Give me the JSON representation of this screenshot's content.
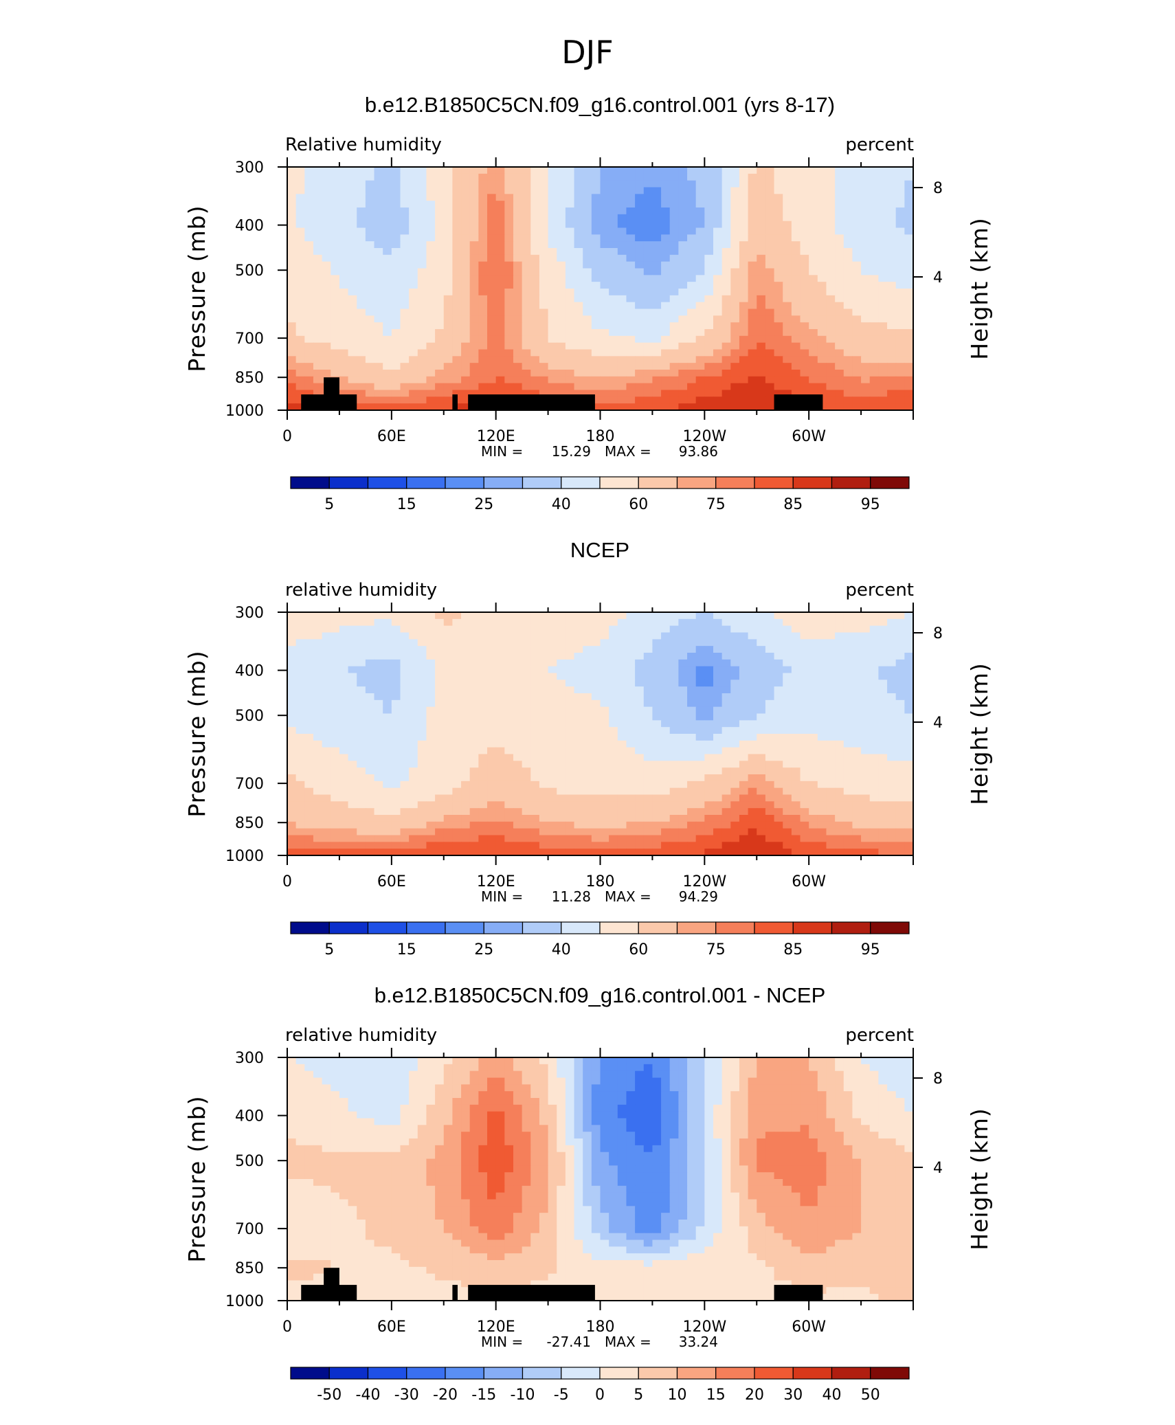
{
  "figure": {
    "title": "DJF"
  },
  "chart_data": [
    {
      "type": "heatmap",
      "title": "b.e12.B1850C5CN.f09_g16.control.001 (yrs 8-17)",
      "left_label": "Relative humidity",
      "right_label": "percent",
      "ylabel": "Pressure (mb)",
      "ylabel_right": "Height (km)",
      "x_ticks": [
        "0",
        "60E",
        "120E",
        "180",
        "120W",
        "60W"
      ],
      "y_ticks": [
        "300",
        "400",
        "500",
        "700",
        "850",
        "1000"
      ],
      "y_ticks_right": [
        "8",
        "4"
      ],
      "min_text": "15.29",
      "max_text": "93.86",
      "colorbar_labels": [
        "5",
        "15",
        "25",
        "40",
        "60",
        "75",
        "85",
        "95"
      ],
      "colorbar_colors": [
        "#000c8b",
        "#0b2fcb",
        "#1e50e6",
        "#3a70f0",
        "#5a8ff4",
        "#86adf6",
        "#b0ccf8",
        "#d8e8fa",
        "#fde5d2",
        "#fbc9ab",
        "#f9a581",
        "#f57f5a",
        "#f05a33",
        "#d8381a",
        "#b01e10",
        "#7f0a07"
      ],
      "masked_topography": true,
      "series": [
        {
          "lon": [
            0,
            60,
            90,
            120,
            150,
            180,
            210,
            240,
            270,
            300,
            330,
            360
          ],
          "p1000": [
            88,
            84,
            86,
            88,
            85,
            82,
            84,
            88,
            90,
            86,
            84,
            86
          ],
          "p850": [
            78,
            62,
            72,
            80,
            74,
            70,
            74,
            80,
            86,
            80,
            74,
            76
          ],
          "p700": [
            62,
            50,
            62,
            78,
            60,
            52,
            48,
            62,
            80,
            72,
            64,
            62
          ],
          "p500": [
            56,
            42,
            56,
            82,
            56,
            36,
            28,
            40,
            74,
            60,
            50,
            44
          ],
          "p400": [
            52,
            34,
            54,
            80,
            48,
            26,
            22,
            30,
            66,
            56,
            44,
            38
          ],
          "p300": [
            52,
            38,
            56,
            74,
            52,
            30,
            26,
            32,
            62,
            54,
            46,
            40
          ]
        }
      ]
    },
    {
      "type": "heatmap",
      "title": "NCEP",
      "left_label": "relative humidity",
      "right_label": "percent",
      "ylabel": "Pressure (mb)",
      "ylabel_right": "Height (km)",
      "x_ticks": [
        "0",
        "60E",
        "120E",
        "180",
        "120W",
        "60W"
      ],
      "y_ticks": [
        "300",
        "400",
        "500",
        "700",
        "850",
        "1000"
      ],
      "y_ticks_right": [
        "8",
        "4"
      ],
      "min_text": "11.28",
      "max_text": "94.29",
      "colorbar_labels": [
        "5",
        "15",
        "25",
        "40",
        "60",
        "75",
        "85",
        "95"
      ],
      "colorbar_colors": [
        "#000c8b",
        "#0b2fcb",
        "#1e50e6",
        "#3a70f0",
        "#5a8ff4",
        "#86adf6",
        "#b0ccf8",
        "#d8e8fa",
        "#fde5d2",
        "#fbc9ab",
        "#f9a581",
        "#f57f5a",
        "#f05a33",
        "#d8381a",
        "#b01e10",
        "#7f0a07"
      ],
      "masked_topography": false,
      "series": [
        {
          "lon": [
            0,
            60,
            90,
            120,
            150,
            180,
            210,
            240,
            270,
            300,
            330,
            360
          ],
          "p1000": [
            82,
            84,
            86,
            86,
            84,
            82,
            84,
            86,
            90,
            84,
            82,
            80
          ],
          "p850": [
            70,
            62,
            72,
            76,
            70,
            68,
            70,
            76,
            84,
            74,
            68,
            66
          ],
          "p700": [
            62,
            48,
            56,
            66,
            58,
            56,
            54,
            62,
            74,
            60,
            56,
            54
          ],
          "p500": [
            48,
            40,
            54,
            56,
            54,
            52,
            40,
            28,
            40,
            46,
            44,
            40
          ],
          "p400": [
            46,
            36,
            52,
            54,
            50,
            46,
            36,
            22,
            34,
            44,
            42,
            36
          ],
          "p300": [
            56,
            52,
            62,
            58,
            56,
            54,
            46,
            40,
            48,
            56,
            54,
            50
          ]
        }
      ]
    },
    {
      "type": "heatmap",
      "title": "b.e12.B1850C5CN.f09_g16.control.001 - NCEP",
      "left_label": "relative humidity",
      "right_label": "percent",
      "ylabel": "Pressure (mb)",
      "ylabel_right": "Height (km)",
      "x_ticks": [
        "0",
        "60E",
        "120E",
        "180",
        "120W",
        "60W"
      ],
      "y_ticks": [
        "300",
        "400",
        "500",
        "700",
        "850",
        "1000"
      ],
      "y_ticks_right": [
        "8",
        "4"
      ],
      "min_text": "-27.41",
      "max_text": "33.24",
      "colorbar_labels": [
        "-50",
        "-40",
        "-30",
        "-20",
        "-15",
        "-10",
        "-5",
        "0",
        "5",
        "10",
        "15",
        "20",
        "30",
        "40",
        "50"
      ],
      "colorbar_colors": [
        "#000c8b",
        "#0b2fcb",
        "#1e50e6",
        "#3a70f0",
        "#5a8ff4",
        "#86adf6",
        "#b0ccf8",
        "#d8e8fa",
        "#fde5d2",
        "#fbc9ab",
        "#f9a581",
        "#f57f5a",
        "#f05a33",
        "#d8381a",
        "#b01e10",
        "#7f0a07"
      ],
      "masked_topography": true,
      "series": [
        {
          "lon": [
            0,
            60,
            90,
            120,
            150,
            180,
            210,
            240,
            270,
            300,
            330,
            360
          ],
          "p1000": [
            4,
            2,
            3,
            4,
            3,
            2,
            3,
            4,
            3,
            4,
            4,
            6
          ],
          "p850": [
            6,
            4,
            6,
            8,
            6,
            2,
            2,
            4,
            4,
            8,
            6,
            8
          ],
          "p700": [
            2,
            6,
            10,
            18,
            8,
            -8,
            -18,
            -4,
            8,
            14,
            10,
            6
          ],
          "p500": [
            6,
            6,
            12,
            24,
            12,
            -14,
            -20,
            -6,
            16,
            18,
            10,
            6
          ],
          "p400": [
            4,
            -2,
            8,
            22,
            8,
            -18,
            -24,
            -4,
            14,
            14,
            4,
            0
          ],
          "p300": [
            0,
            -4,
            4,
            12,
            4,
            -16,
            -20,
            -6,
            10,
            10,
            0,
            -4
          ]
        }
      ]
    }
  ]
}
